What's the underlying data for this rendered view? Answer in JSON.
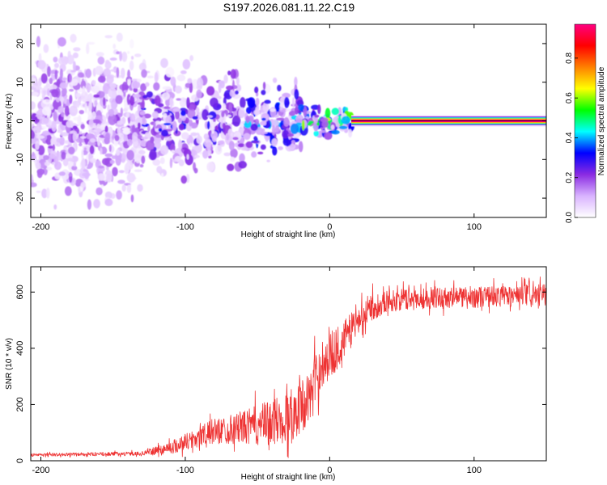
{
  "title": "S197.2026.081.11.22.C19",
  "chart_data": [
    {
      "type": "heatmap",
      "xlabel": "Height of straight line (km)",
      "ylabel": "Frequency (Hz)",
      "xlim": [
        -207,
        150
      ],
      "ylim": [
        -25,
        25
      ],
      "xticks": [
        -200,
        -100,
        0,
        100
      ],
      "yticks": [
        -20,
        -10,
        0,
        10,
        20
      ],
      "colorbar": {
        "label": "Normalized spectral amplitude",
        "range": [
          0,
          0.97
        ],
        "ticks": [
          0.0,
          0.2,
          0.4,
          0.6,
          0.8
        ],
        "colors": [
          "#ffffff",
          "#d9b3ff",
          "#8a2be2",
          "#0000ff",
          "#00ffff",
          "#00ff00",
          "#ffff00",
          "#ff8000",
          "#ff0000",
          "#ff0080"
        ]
      },
      "tone": {
        "freq_hz": 0,
        "x_start_km": 15,
        "x_end_km": 150,
        "amplitude": 0.97
      },
      "regions": [
        {
          "x_from": -207,
          "x_to": -130,
          "f_halfwidth": 25,
          "amplitude": 0.2
        },
        {
          "x_from": -130,
          "x_to": -60,
          "f_halfwidth": 12,
          "amplitude": 0.3
        },
        {
          "x_from": -60,
          "x_to": -20,
          "f_halfwidth": 8,
          "amplitude": 0.4
        },
        {
          "x_from": -20,
          "x_to": 15,
          "f_halfwidth": 3,
          "amplitude": 0.6
        }
      ]
    },
    {
      "type": "line",
      "xlabel": "Height of straight line (km)",
      "ylabel": "SNR (10 * v/v)",
      "xlim": [
        -207,
        150
      ],
      "ylim": [
        0,
        690
      ],
      "xticks": [
        -200,
        -100,
        0,
        100
      ],
      "yticks": [
        0,
        200,
        400,
        600
      ],
      "color": "#ee3333",
      "trend": [
        {
          "x": -207,
          "y": 20
        },
        {
          "x": -130,
          "y": 25
        },
        {
          "x": -110,
          "y": 45
        },
        {
          "x": -80,
          "y": 100
        },
        {
          "x": -50,
          "y": 120
        },
        {
          "x": -30,
          "y": 140
        },
        {
          "x": -15,
          "y": 210
        },
        {
          "x": -5,
          "y": 340
        },
        {
          "x": 5,
          "y": 390
        },
        {
          "x": 15,
          "y": 460
        },
        {
          "x": 25,
          "y": 530
        },
        {
          "x": 40,
          "y": 565
        },
        {
          "x": 70,
          "y": 575
        },
        {
          "x": 110,
          "y": 580
        },
        {
          "x": 150,
          "y": 585
        }
      ],
      "noise": [
        {
          "x": -207,
          "amp": 12
        },
        {
          "x": -130,
          "amp": 15
        },
        {
          "x": -100,
          "amp": 70
        },
        {
          "x": -60,
          "amp": 130
        },
        {
          "x": -25,
          "amp": 220
        },
        {
          "x": 0,
          "amp": 190
        },
        {
          "x": 20,
          "amp": 120
        },
        {
          "x": 40,
          "amp": 85
        },
        {
          "x": 150,
          "amp": 85
        }
      ]
    }
  ]
}
